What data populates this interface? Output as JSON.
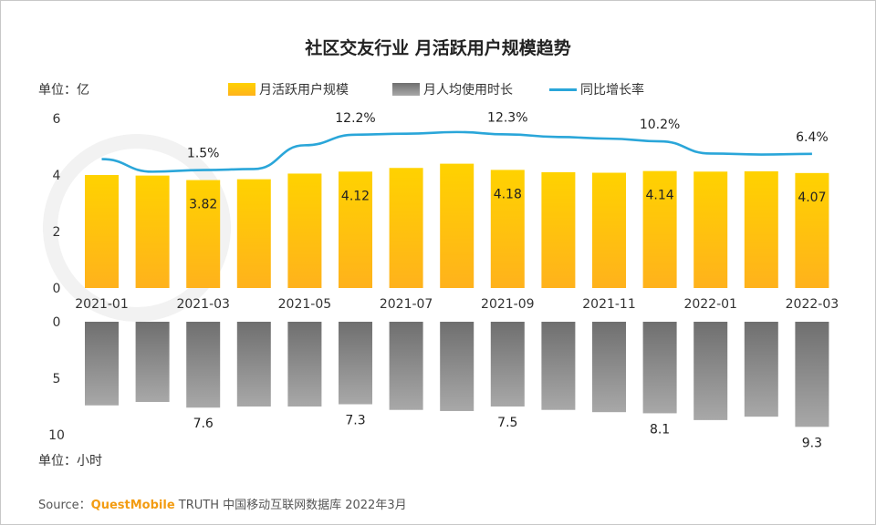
{
  "title": "社区交友行业 月活跃用户规模趋势",
  "unit_top": "单位：亿",
  "unit_bottom": "单位：小时",
  "legend": {
    "mau": "月活跃用户规模",
    "time": "月人均使用时长",
    "growth": "同比增长率"
  },
  "source": {
    "prefix": "Source：",
    "brand": "QuestMobile",
    "suffix": " TRUTH 中国移动互联网数据库 2022年3月"
  },
  "colors": {
    "bar_top": "#FFD200",
    "bar_bottom": "#FFB21C",
    "gray_top": "#6f6f6f",
    "gray_bottom": "#a8a8a8",
    "line": "#2aa6d9"
  },
  "chart_data": [
    {
      "type": "bar",
      "name": "月活跃用户规模",
      "title": "社区交友行业 月活跃用户规模趋势",
      "categories": [
        "2021-01",
        "2021-02",
        "2021-03",
        "2021-04",
        "2021-05",
        "2021-06",
        "2021-07",
        "2021-08",
        "2021-09",
        "2021-10",
        "2021-11",
        "2021-12",
        "2022-01",
        "2022-02",
        "2022-03"
      ],
      "values": [
        4.0,
        3.98,
        3.82,
        3.85,
        4.05,
        4.12,
        4.25,
        4.4,
        4.18,
        4.1,
        4.08,
        4.14,
        4.12,
        4.13,
        4.07
      ],
      "data_labels": {
        "2": "3.82",
        "5": "4.12",
        "8": "4.18",
        "11": "4.14",
        "14": "4.07"
      },
      "xtick_labels": [
        "2021-01",
        "2021-03",
        "2021-05",
        "2021-07",
        "2021-09",
        "2021-11",
        "2022-01",
        "2022-03"
      ],
      "ytick_labels": [
        "0",
        "2",
        "4",
        "6"
      ],
      "ylim": [
        0,
        6
      ],
      "ylabel": "单位：亿"
    },
    {
      "type": "line",
      "name": "同比增长率",
      "categories": [
        "2021-01",
        "2021-02",
        "2021-03",
        "2021-04",
        "2021-05",
        "2021-06",
        "2021-07",
        "2021-08",
        "2021-09",
        "2021-10",
        "2021-11",
        "2021-12",
        "2022-01",
        "2022-02",
        "2022-03"
      ],
      "values": [
        4.8,
        1.0,
        1.5,
        1.8,
        9.0,
        12.2,
        12.5,
        13.0,
        12.3,
        11.5,
        11.0,
        10.2,
        6.5,
        6.2,
        6.4
      ],
      "data_labels": {
        "2": "1.5%",
        "5": "12.2%",
        "8": "12.3%",
        "11": "10.2%",
        "14": "6.4%"
      }
    },
    {
      "type": "bar",
      "name": "月人均使用时长",
      "categories": [
        "2021-01",
        "2021-02",
        "2021-03",
        "2021-04",
        "2021-05",
        "2021-06",
        "2021-07",
        "2021-08",
        "2021-09",
        "2021-10",
        "2021-11",
        "2021-12",
        "2022-01",
        "2022-02",
        "2022-03"
      ],
      "values": [
        7.4,
        7.1,
        7.6,
        7.5,
        7.5,
        7.3,
        7.8,
        7.9,
        7.5,
        7.8,
        8.0,
        8.1,
        8.7,
        8.4,
        9.3
      ],
      "data_labels": {
        "2": "7.6",
        "5": "7.3",
        "8": "7.5",
        "11": "8.1",
        "14": "9.3"
      },
      "ytick_labels": [
        "0",
        "5",
        "10"
      ],
      "ylim": [
        0,
        10
      ],
      "inverted": true,
      "ylabel": "单位：小时"
    }
  ]
}
